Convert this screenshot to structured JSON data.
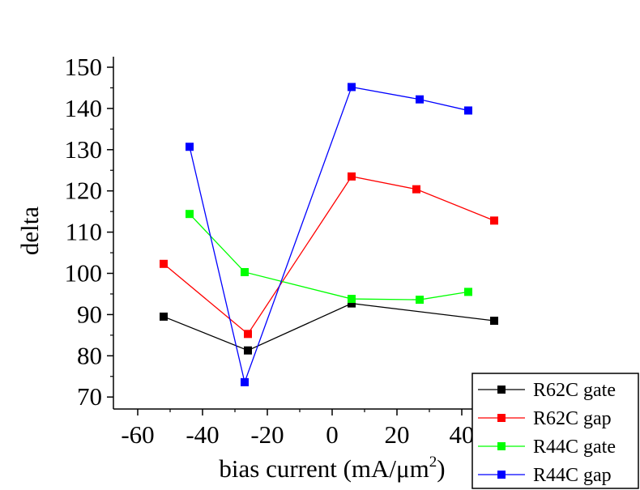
{
  "chart_data": {
    "type": "line",
    "title": "",
    "xlabel": "bias current (mA/μm",
    "xlabel_superscript": "2",
    "xlabel_suffix": ")",
    "ylabel": "delta",
    "xlim": [
      -70,
      45
    ],
    "ylim": [
      67,
      152
    ],
    "grid": false,
    "legend_position": "bottom-right",
    "x_ticks": [
      -60,
      -40,
      -20,
      0,
      20,
      40
    ],
    "x_tick_labels": [
      "-60",
      "-40",
      "-20",
      "0",
      "20",
      "40"
    ],
    "y_ticks": [
      70,
      80,
      90,
      100,
      110,
      120,
      130,
      140,
      150
    ],
    "y_tick_labels": [
      "70",
      "80",
      "90",
      "100",
      "110",
      "120",
      "130",
      "140",
      "150"
    ],
    "series": [
      {
        "name": "R62C gate",
        "color": "#000000",
        "x": [
          -52,
          -26,
          6,
          50
        ],
        "y": [
          89.5,
          81.3,
          92.7,
          88.5
        ]
      },
      {
        "name": "R62C gap",
        "color": "#ff0000",
        "x": [
          -52,
          -26,
          6,
          26,
          50
        ],
        "y": [
          102.3,
          85.3,
          123.5,
          120.4,
          112.8
        ]
      },
      {
        "name": "R44C gate",
        "color": "#00ff00",
        "x": [
          -44,
          -27,
          6,
          27,
          42
        ],
        "y": [
          114.4,
          100.3,
          93.8,
          93.6,
          95.5
        ]
      },
      {
        "name": "R44C gap",
        "color": "#0000ff",
        "x": [
          -44,
          -27,
          6,
          27,
          42
        ],
        "y": [
          130.7,
          73.6,
          145.2,
          142.2,
          139.5
        ]
      }
    ]
  }
}
